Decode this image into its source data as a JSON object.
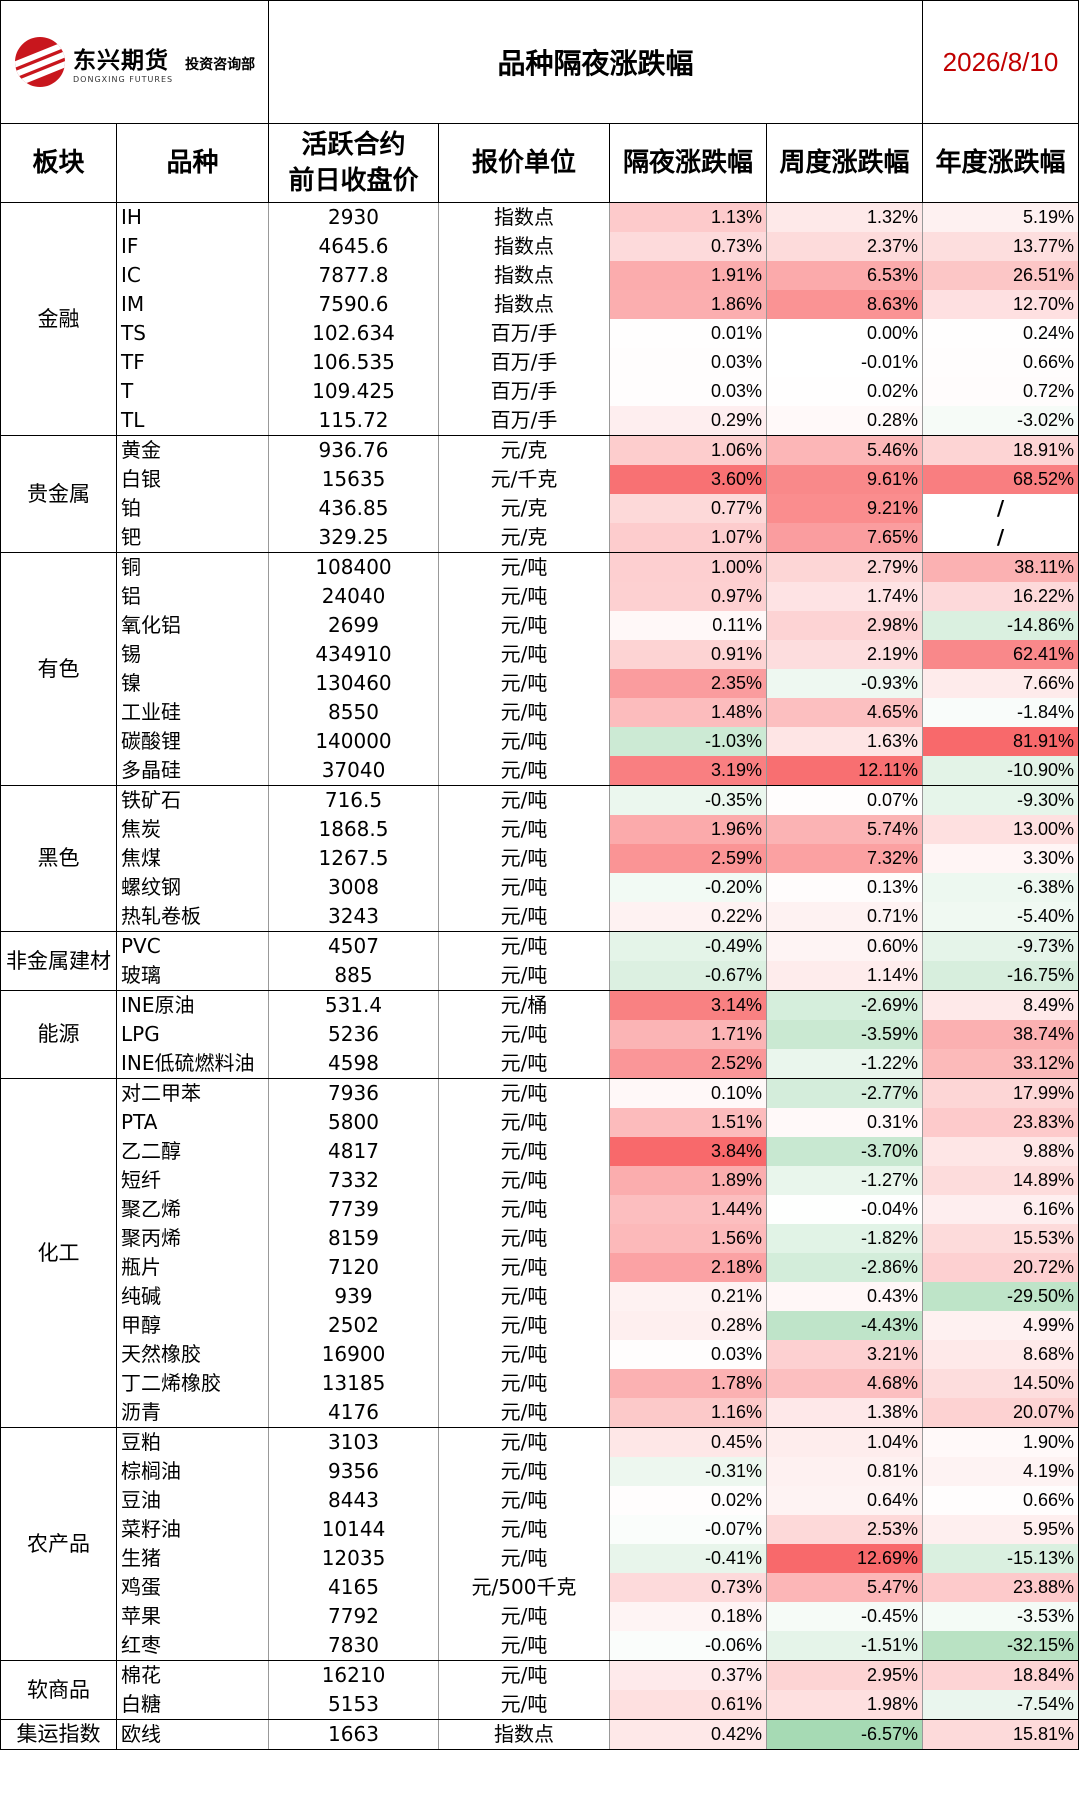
{
  "header": {
    "logo_cn": "东兴期货",
    "logo_en": "DONGXING FUTURES",
    "logo_dept": "投资咨询部",
    "title": "品种隔夜涨跌幅",
    "date": "2026/8/10"
  },
  "columns": [
    "板块",
    "品种",
    "活跃合约\n前日收盘价",
    "报价单位",
    "隔夜涨跌幅",
    "周度涨跌幅",
    "年度涨跌幅"
  ],
  "columns_split": {
    "price_line1": "活跃合约",
    "price_line2": "前日收盘价"
  },
  "colors": {
    "up_max": "#f8696b",
    "down_max": "#63be7b",
    "neutral": "#ffffff"
  },
  "sectors": [
    {
      "name": "金融",
      "rows": [
        [
          "IH",
          "2930",
          "指数点",
          "1.13%",
          "1.32%",
          "5.19%"
        ],
        [
          "IF",
          "4645.6",
          "指数点",
          "0.73%",
          "2.37%",
          "13.77%"
        ],
        [
          "IC",
          "7877.8",
          "指数点",
          "1.91%",
          "6.53%",
          "26.51%"
        ],
        [
          "IM",
          "7590.6",
          "指数点",
          "1.86%",
          "8.63%",
          "12.70%"
        ],
        [
          "TS",
          "102.634",
          "百万/手",
          "0.01%",
          "0.00%",
          "0.24%"
        ],
        [
          "TF",
          "106.535",
          "百万/手",
          "0.03%",
          "-0.01%",
          "0.66%"
        ],
        [
          "T",
          "109.425",
          "百万/手",
          "0.03%",
          "0.02%",
          "0.72%"
        ],
        [
          "TL",
          "115.72",
          "百万/手",
          "0.29%",
          "0.28%",
          "-3.02%"
        ]
      ]
    },
    {
      "name": "贵金属",
      "rows": [
        [
          "黄金",
          "936.76",
          "元/克",
          "1.06%",
          "5.46%",
          "18.91%"
        ],
        [
          "白银",
          "15635",
          "元/千克",
          "3.60%",
          "9.61%",
          "68.52%"
        ],
        [
          "铂",
          "436.85",
          "元/克",
          "0.77%",
          "9.21%",
          "/"
        ],
        [
          "钯",
          "329.25",
          "元/克",
          "1.07%",
          "7.65%",
          "/"
        ]
      ]
    },
    {
      "name": "有色",
      "rows": [
        [
          "铜",
          "108400",
          "元/吨",
          "1.00%",
          "2.79%",
          "38.11%"
        ],
        [
          "铝",
          "24040",
          "元/吨",
          "0.97%",
          "1.74%",
          "16.22%"
        ],
        [
          "氧化铝",
          "2699",
          "元/吨",
          "0.11%",
          "2.98%",
          "-14.86%"
        ],
        [
          "锡",
          "434910",
          "元/吨",
          "0.91%",
          "2.19%",
          "62.41%"
        ],
        [
          "镍",
          "130460",
          "元/吨",
          "2.35%",
          "-0.93%",
          "7.66%"
        ],
        [
          "工业硅",
          "8550",
          "元/吨",
          "1.48%",
          "4.65%",
          "-1.84%"
        ],
        [
          "碳酸锂",
          "140000",
          "元/吨",
          "-1.03%",
          "1.63%",
          "81.91%"
        ],
        [
          "多晶硅",
          "37040",
          "元/吨",
          "3.19%",
          "12.11%",
          "-10.90%"
        ]
      ]
    },
    {
      "name": "黑色",
      "rows": [
        [
          "铁矿石",
          "716.5",
          "元/吨",
          "-0.35%",
          "0.07%",
          "-9.30%"
        ],
        [
          "焦炭",
          "1868.5",
          "元/吨",
          "1.96%",
          "5.74%",
          "13.00%"
        ],
        [
          "焦煤",
          "1267.5",
          "元/吨",
          "2.59%",
          "7.32%",
          "3.30%"
        ],
        [
          "螺纹钢",
          "3008",
          "元/吨",
          "-0.20%",
          "0.13%",
          "-6.38%"
        ],
        [
          "热轧卷板",
          "3243",
          "元/吨",
          "0.22%",
          "0.71%",
          "-5.40%"
        ]
      ]
    },
    {
      "name": "非金属建材",
      "rows": [
        [
          "PVC",
          "4507",
          "元/吨",
          "-0.49%",
          "0.60%",
          "-9.73%"
        ],
        [
          "玻璃",
          "885",
          "元/吨",
          "-0.67%",
          "1.14%",
          "-16.75%"
        ]
      ]
    },
    {
      "name": "能源",
      "rows": [
        [
          "INE原油",
          "531.4",
          "元/桶",
          "3.14%",
          "-2.69%",
          "8.49%"
        ],
        [
          "LPG",
          "5236",
          "元/吨",
          "1.71%",
          "-3.59%",
          "38.74%"
        ],
        [
          "INE低硫燃料油",
          "4598",
          "元/吨",
          "2.52%",
          "-1.22%",
          "33.12%"
        ]
      ]
    },
    {
      "name": "化工",
      "rows": [
        [
          "对二甲苯",
          "7936",
          "元/吨",
          "0.10%",
          "-2.77%",
          "17.99%"
        ],
        [
          "PTA",
          "5800",
          "元/吨",
          "1.51%",
          "0.31%",
          "23.83%"
        ],
        [
          "乙二醇",
          "4817",
          "元/吨",
          "3.84%",
          "-3.70%",
          "9.88%"
        ],
        [
          "短纤",
          "7332",
          "元/吨",
          "1.89%",
          "-1.27%",
          "14.89%"
        ],
        [
          "聚乙烯",
          "7739",
          "元/吨",
          "1.44%",
          "-0.04%",
          "6.16%"
        ],
        [
          "聚丙烯",
          "8159",
          "元/吨",
          "1.56%",
          "-1.82%",
          "15.53%"
        ],
        [
          "瓶片",
          "7120",
          "元/吨",
          "2.18%",
          "-2.86%",
          "20.72%"
        ],
        [
          "纯碱",
          "939",
          "元/吨",
          "0.21%",
          "0.43%",
          "-29.50%"
        ],
        [
          "甲醇",
          "2502",
          "元/吨",
          "0.28%",
          "-4.43%",
          "4.99%"
        ],
        [
          "天然橡胶",
          "16900",
          "元/吨",
          "0.03%",
          "3.21%",
          "8.68%"
        ],
        [
          "丁二烯橡胶",
          "13185",
          "元/吨",
          "1.78%",
          "4.68%",
          "14.50%"
        ],
        [
          "沥青",
          "4176",
          "元/吨",
          "1.16%",
          "1.38%",
          "20.07%"
        ]
      ]
    },
    {
      "name": "农产品",
      "rows": [
        [
          "豆粕",
          "3103",
          "元/吨",
          "0.45%",
          "1.04%",
          "1.90%"
        ],
        [
          "棕榈油",
          "9356",
          "元/吨",
          "-0.31%",
          "0.81%",
          "4.19%"
        ],
        [
          "豆油",
          "8443",
          "元/吨",
          "0.02%",
          "0.64%",
          "0.66%"
        ],
        [
          "菜籽油",
          "10144",
          "元/吨",
          "-0.07%",
          "2.53%",
          "5.95%"
        ],
        [
          "生猪",
          "12035",
          "元/吨",
          "-0.41%",
          "12.69%",
          "-15.13%"
        ],
        [
          "鸡蛋",
          "4165",
          "元/500千克",
          "0.73%",
          "5.47%",
          "23.88%"
        ],
        [
          "苹果",
          "7792",
          "元/吨",
          "0.18%",
          "-0.45%",
          "-3.53%"
        ],
        [
          "红枣",
          "7830",
          "元/吨",
          "-0.06%",
          "-1.51%",
          "-32.15%"
        ]
      ]
    },
    {
      "name": "软商品",
      "rows": [
        [
          "棉花",
          "16210",
          "元/吨",
          "0.37%",
          "2.95%",
          "18.84%"
        ],
        [
          "白糖",
          "5153",
          "元/吨",
          "0.61%",
          "1.98%",
          "-7.54%"
        ]
      ]
    },
    {
      "name": "集运指数",
      "rows": [
        [
          "欧线",
          "1663",
          "指数点",
          "0.42%",
          "-6.57%",
          "15.81%"
        ]
      ]
    }
  ]
}
